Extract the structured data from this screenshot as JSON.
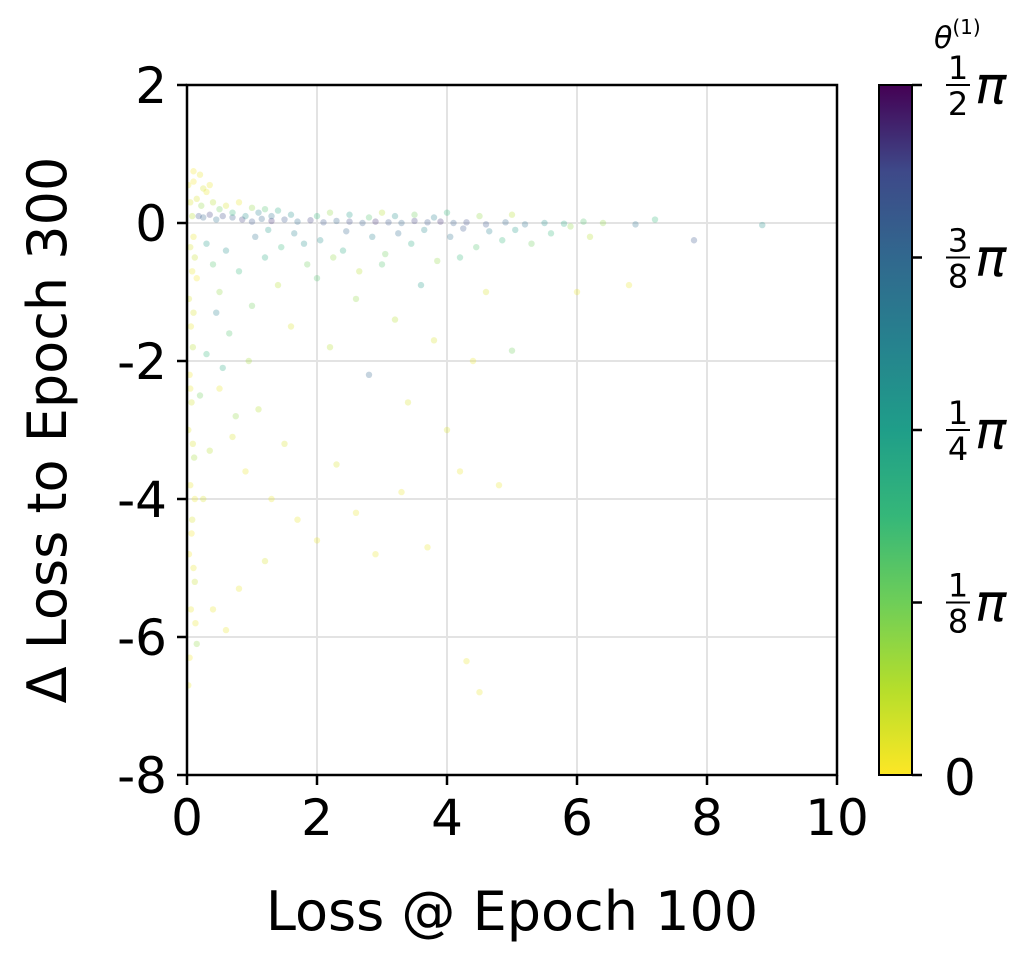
{
  "chart_data": {
    "type": "scatter",
    "title": "",
    "xlabel": "Loss @ Epoch 100",
    "ylabel": "Δ Loss to Epoch 300",
    "xlim": [
      0,
      10
    ],
    "ylim": [
      -8,
      2
    ],
    "xticks": [
      0,
      2,
      4,
      6,
      8,
      10
    ],
    "xtick_labels": [
      "0",
      "2",
      "4",
      "6",
      "8",
      "10"
    ],
    "yticks": [
      2,
      0,
      -2,
      -4,
      -6,
      -8
    ],
    "ytick_labels": [
      "2",
      "0",
      "-2",
      "-4",
      "-6",
      "-8"
    ],
    "grid": true,
    "colorbar": {
      "label": "θ",
      "label_superscript": "(1)",
      "colormap": "viridis_r",
      "range": [
        0,
        1.5708
      ],
      "ticks": [
        {
          "value": 0,
          "num": "",
          "den": "",
          "text": "0"
        },
        {
          "value": 0.3927,
          "num": "1",
          "den": "8",
          "text": "π"
        },
        {
          "value": 0.7854,
          "num": "1",
          "den": "4",
          "text": "π"
        },
        {
          "value": 1.1781,
          "num": "3",
          "den": "8",
          "text": "π"
        },
        {
          "value": 1.5708,
          "num": "1",
          "den": "2",
          "text": "π"
        }
      ]
    },
    "series": [
      {
        "points": [
          [
            0.02,
            0.55,
            0.05
          ],
          [
            0.05,
            0.3,
            0.1
          ],
          [
            0.08,
            0.1,
            0.2
          ],
          [
            0.1,
            -0.2,
            0.05
          ],
          [
            0.12,
            -0.5,
            0.15
          ],
          [
            0.15,
            -0.8,
            0.02
          ],
          [
            0.03,
            -1.1,
            0.1
          ],
          [
            0.06,
            -1.5,
            0.05
          ],
          [
            0.09,
            -1.8,
            0.2
          ],
          [
            0.04,
            -2.2,
            0.03
          ],
          [
            0.07,
            -2.6,
            0.12
          ],
          [
            0.02,
            -3.0,
            0.08
          ],
          [
            0.11,
            -3.4,
            0.25
          ],
          [
            0.05,
            -3.8,
            0.05
          ],
          [
            0.08,
            -4.3,
            0.1
          ],
          [
            0.03,
            -4.8,
            0.02
          ],
          [
            0.12,
            -5.2,
            0.15
          ],
          [
            0.06,
            -5.6,
            0.05
          ],
          [
            0.15,
            -6.1,
            0.3
          ],
          [
            0.02,
            -6.7,
            0.05
          ],
          [
            0.18,
            0.1,
            1.3
          ],
          [
            0.25,
            0.08,
            1.2
          ],
          [
            0.35,
            0.12,
            1.4
          ],
          [
            0.45,
            0.05,
            1.1
          ],
          [
            0.55,
            0.1,
            1.35
          ],
          [
            0.7,
            0.08,
            1.25
          ],
          [
            0.85,
            0.05,
            1.4
          ],
          [
            1.0,
            0.02,
            1.3
          ],
          [
            1.15,
            0.06,
            1.2
          ],
          [
            1.3,
            0.03,
            1.45
          ],
          [
            1.5,
            0.05,
            1.3
          ],
          [
            1.7,
            0.02,
            1.15
          ],
          [
            1.9,
            0.04,
            1.4
          ],
          [
            2.1,
            0.01,
            1.3
          ],
          [
            2.3,
            0.03,
            1.2
          ],
          [
            2.5,
            0.02,
            1.35
          ],
          [
            2.7,
            0.0,
            1.25
          ],
          [
            2.9,
            0.02,
            1.45
          ],
          [
            3.1,
            0.01,
            1.3
          ],
          [
            3.3,
            0.0,
            1.2
          ],
          [
            3.5,
            0.03,
            1.4
          ],
          [
            3.7,
            0.01,
            1.3
          ],
          [
            3.9,
            0.02,
            1.45
          ],
          [
            4.1,
            0.0,
            1.25
          ],
          [
            4.3,
            0.01,
            1.35
          ],
          [
            4.6,
            -0.02,
            1.3
          ],
          [
            4.9,
            0.01,
            1.2
          ],
          [
            5.2,
            -0.02,
            1.1
          ],
          [
            5.5,
            0.0,
            0.9
          ],
          [
            5.8,
            -0.01,
            0.7
          ],
          [
            6.1,
            0.02,
            0.5
          ],
          [
            6.4,
            0.0,
            0.3
          ],
          [
            6.9,
            -0.02,
            1.1
          ],
          [
            7.2,
            0.05,
            0.6
          ],
          [
            7.8,
            -0.25,
            1.3
          ],
          [
            8.85,
            -0.03,
            0.9
          ],
          [
            6.0,
            -1.0,
            0.05
          ],
          [
            6.8,
            -0.9,
            0.05
          ],
          [
            5.0,
            -1.85,
            0.4
          ],
          [
            0.3,
            -0.3,
            0.8
          ],
          [
            0.4,
            -0.6,
            0.5
          ],
          [
            0.5,
            -1.0,
            0.3
          ],
          [
            0.6,
            -0.4,
            0.9
          ],
          [
            0.8,
            -0.7,
            0.6
          ],
          [
            1.0,
            -1.2,
            0.4
          ],
          [
            1.2,
            -0.5,
            0.7
          ],
          [
            1.4,
            -0.9,
            0.2
          ],
          [
            1.6,
            -1.5,
            0.1
          ],
          [
            1.8,
            -0.3,
            0.9
          ],
          [
            2.0,
            -0.8,
            0.5
          ],
          [
            2.2,
            -1.8,
            0.2
          ],
          [
            2.4,
            -0.4,
            0.7
          ],
          [
            2.6,
            -1.1,
            0.3
          ],
          [
            2.8,
            -2.2,
            1.2
          ],
          [
            3.0,
            -0.6,
            0.5
          ],
          [
            3.2,
            -1.4,
            0.2
          ],
          [
            3.4,
            -2.6,
            0.1
          ],
          [
            3.6,
            -0.9,
            0.8
          ],
          [
            3.8,
            -1.7,
            0.1
          ],
          [
            4.0,
            -3.0,
            0.1
          ],
          [
            4.2,
            -0.5,
            0.6
          ],
          [
            4.4,
            -2.0,
            0.05
          ],
          [
            4.6,
            -1.0,
            0.1
          ],
          [
            4.8,
            -3.8,
            0.05
          ],
          [
            0.5,
            -2.4,
            0.05
          ],
          [
            0.7,
            -3.1,
            0.1
          ],
          [
            0.9,
            -3.6,
            0.05
          ],
          [
            1.1,
            -2.7,
            0.2
          ],
          [
            1.3,
            -4.0,
            0.05
          ],
          [
            1.5,
            -3.2,
            0.1
          ],
          [
            1.7,
            -4.3,
            0.05
          ],
          [
            2.0,
            -4.6,
            0.05
          ],
          [
            2.3,
            -3.5,
            0.1
          ],
          [
            2.6,
            -4.2,
            0.05
          ],
          [
            2.9,
            -4.8,
            0.05
          ],
          [
            3.3,
            -3.9,
            0.05
          ],
          [
            3.7,
            -4.7,
            0.05
          ],
          [
            4.2,
            -3.6,
            0.05
          ],
          [
            4.3,
            -6.35,
            0.05
          ],
          [
            4.5,
            -6.8,
            0.05
          ],
          [
            0.6,
            -5.9,
            0.05
          ],
          [
            0.8,
            -5.3,
            0.05
          ],
          [
            0.4,
            -5.6,
            0.05
          ],
          [
            1.2,
            -4.9,
            0.1
          ],
          [
            0.3,
            -1.9,
            0.6
          ],
          [
            0.2,
            -2.5,
            0.4
          ],
          [
            0.35,
            -3.3,
            0.2
          ],
          [
            0.25,
            -4.0,
            0.1
          ],
          [
            0.45,
            -1.3,
            1.0
          ],
          [
            0.55,
            -2.1,
            0.7
          ],
          [
            0.65,
            -1.6,
            0.5
          ],
          [
            0.75,
            -2.8,
            0.3
          ],
          [
            0.95,
            -2.0,
            0.25
          ],
          [
            1.05,
            -0.2,
            1.1
          ],
          [
            1.25,
            -0.1,
            0.8
          ],
          [
            1.45,
            -0.35,
            0.6
          ],
          [
            1.65,
            -0.15,
            1.0
          ],
          [
            1.85,
            -0.6,
            0.4
          ],
          [
            2.05,
            -0.25,
            0.9
          ],
          [
            2.25,
            -0.5,
            0.3
          ],
          [
            2.45,
            -0.12,
            1.2
          ],
          [
            2.65,
            -0.7,
            0.2
          ],
          [
            2.85,
            -0.2,
            1.0
          ],
          [
            3.05,
            -0.45,
            0.4
          ],
          [
            3.25,
            -0.15,
            1.15
          ],
          [
            3.45,
            -0.3,
            0.7
          ],
          [
            3.65,
            -0.1,
            0.95
          ],
          [
            3.85,
            -0.55,
            0.3
          ],
          [
            4.05,
            -0.2,
            1.1
          ],
          [
            4.25,
            -0.08,
            1.3
          ],
          [
            4.45,
            -0.35,
            0.5
          ],
          [
            4.65,
            -0.12,
            1.0
          ],
          [
            4.85,
            -0.25,
            0.6
          ],
          [
            5.05,
            -0.1,
            0.8
          ],
          [
            5.3,
            -0.3,
            0.4
          ],
          [
            5.6,
            -0.15,
            0.6
          ],
          [
            5.9,
            -0.05,
            0.3
          ],
          [
            6.2,
            -0.2,
            0.2
          ],
          [
            0.15,
            0.35,
            0.1
          ],
          [
            0.22,
            0.25,
            0.3
          ],
          [
            0.3,
            0.45,
            0.05
          ],
          [
            0.4,
            0.3,
            0.2
          ],
          [
            0.5,
            0.2,
            0.4
          ],
          [
            0.6,
            0.25,
            0.1
          ],
          [
            0.7,
            0.15,
            0.6
          ],
          [
            0.8,
            0.3,
            0.05
          ],
          [
            0.9,
            0.1,
            0.9
          ],
          [
            1.0,
            0.22,
            0.3
          ],
          [
            1.1,
            0.15,
            1.0
          ],
          [
            1.2,
            0.2,
            0.5
          ],
          [
            1.3,
            0.1,
            1.1
          ],
          [
            1.4,
            0.18,
            0.7
          ],
          [
            1.6,
            0.12,
            0.9
          ],
          [
            2.0,
            0.1,
            0.6
          ],
          [
            2.2,
            0.15,
            0.3
          ],
          [
            2.5,
            0.12,
            0.8
          ],
          [
            2.8,
            0.08,
            0.5
          ],
          [
            3.0,
            0.15,
            0.2
          ],
          [
            3.2,
            0.1,
            0.9
          ],
          [
            3.5,
            0.12,
            0.4
          ],
          [
            3.8,
            0.08,
            1.0
          ],
          [
            4.0,
            0.15,
            0.6
          ],
          [
            4.5,
            0.1,
            0.3
          ],
          [
            5.0,
            0.12,
            0.2
          ],
          [
            0.1,
            0.6,
            0.02
          ],
          [
            0.2,
            0.7,
            0.05
          ],
          [
            0.1,
            0.75,
            0.02
          ],
          [
            0.25,
            0.5,
            0.1
          ],
          [
            0.35,
            0.55,
            0.05
          ],
          [
            0.05,
            -0.35,
            0.1
          ],
          [
            0.08,
            -0.7,
            0.05
          ],
          [
            0.1,
            -1.3,
            0.1
          ],
          [
            0.05,
            -2.4,
            0.05
          ],
          [
            0.09,
            -3.2,
            0.1
          ],
          [
            0.12,
            -4.0,
            0.05
          ],
          [
            0.07,
            -4.5,
            0.02
          ],
          [
            0.1,
            -5.0,
            0.05
          ],
          [
            0.13,
            -5.8,
            0.05
          ],
          [
            0.04,
            -6.3,
            0.02
          ]
        ]
      }
    ]
  }
}
